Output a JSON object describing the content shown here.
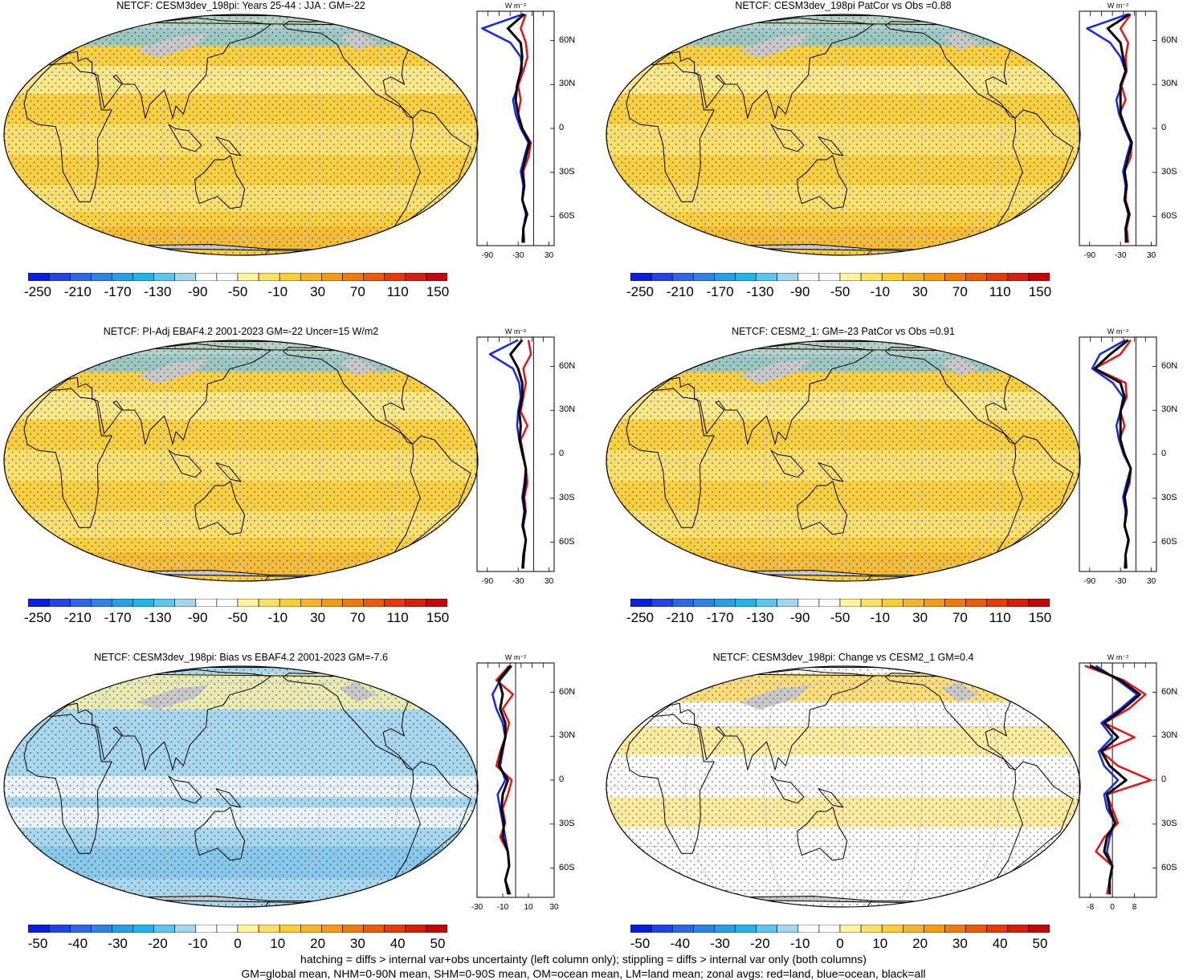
{
  "zonal_unit": "W m⁻²",
  "lat_labels": [
    "60N",
    "30N",
    "0",
    "30S",
    "60S"
  ],
  "palettes": {
    "main": [
      "#0a1ee0",
      "#2244e6",
      "#2e64e6",
      "#2f82e6",
      "#279fe6",
      "#20b4ea",
      "#5cc6ee",
      "#a4d8ee",
      "#ffffff",
      "#ffffff",
      "#fff2a0",
      "#ffe066",
      "#ffcc33",
      "#f7b32a",
      "#f59a14",
      "#f07a0c",
      "#ec5a0a",
      "#e63a0a",
      "#d81e0a",
      "#c4060a"
    ],
    "diff": [
      "#0a1ee0",
      "#2244e6",
      "#2e64e6",
      "#2f82e6",
      "#279fe6",
      "#20b4ea",
      "#5cc6ee",
      "#a4d8ee",
      "#ffffff",
      "#ffffff",
      "#fff2a0",
      "#ffe066",
      "#ffcc33",
      "#f7b32a",
      "#f59a14",
      "#f07a0c",
      "#ec5a0a",
      "#e63a0a",
      "#d81e0a",
      "#c4060a"
    ]
  },
  "panels": [
    {
      "title": "NETCF: CESM3dev_198pi: Years 25-44 : JJA : GM=-22",
      "palette": "main",
      "base": "#f9cf44",
      "colorbar_labels": [
        "-250",
        "-210",
        "-170",
        "-130",
        "-90",
        "-50",
        "-10",
        "30",
        "70",
        "110",
        "150"
      ],
      "zonal_xticks": [
        "-90",
        "-30",
        "30"
      ],
      "zonal_range": [
        -110,
        40
      ],
      "zonal_series": {
        "land": [
          -15,
          -25,
          -15,
          -12,
          -20,
          -30,
          -25,
          -30,
          -22,
          -5,
          -10,
          -20,
          -18,
          -22,
          -12,
          -20,
          -18
        ],
        "ocean": [
          -20,
          -100,
          -45,
          -25,
          -22,
          -30,
          -40,
          -35,
          -25,
          -10,
          -18,
          -25,
          -20,
          -22,
          -15,
          -20,
          -22
        ],
        "all": [
          -18,
          -50,
          -25,
          -22,
          -25,
          -32,
          -35,
          -30,
          -22,
          -8,
          -15,
          -22,
          -18,
          -22,
          -13,
          -20,
          -20
        ]
      }
    },
    {
      "title": "NETCF: CESM3dev_198pi PatCor vs Obs =0.88",
      "palette": "main",
      "base": "#f9cf44",
      "colorbar_labels": [
        "-250",
        "-210",
        "-170",
        "-130",
        "-90",
        "-50",
        "-10",
        "30",
        "70",
        "110",
        "150"
      ],
      "zonal_xticks": [
        "-90",
        "-30",
        "30"
      ],
      "zonal_range": [
        -110,
        40
      ],
      "zonal_series": {
        "land": [
          -10,
          -30,
          -15,
          -20,
          -18,
          -28,
          -20,
          -32,
          -20,
          -8,
          -10,
          -22,
          -18,
          -20,
          -12,
          -18,
          -15
        ],
        "ocean": [
          -15,
          -95,
          -50,
          -30,
          -20,
          -28,
          -38,
          -33,
          -22,
          -10,
          -18,
          -25,
          -20,
          -22,
          -15,
          -20,
          -20
        ],
        "all": [
          -12,
          -55,
          -30,
          -25,
          -20,
          -30,
          -30,
          -30,
          -20,
          -8,
          -15,
          -22,
          -18,
          -22,
          -13,
          -20,
          -18
        ]
      }
    },
    {
      "title": "NETCF: PI-Adj EBAF4.2 2001-2023 GM=-22 Uncer=15 W/m2",
      "palette": "main",
      "base": "#f9cf44",
      "colorbar_labels": [
        "-250",
        "-210",
        "-170",
        "-130",
        "-90",
        "-50",
        "-10",
        "30",
        "70",
        "110",
        "150"
      ],
      "zonal_xticks": [
        "-90",
        "-30",
        "30"
      ],
      "zonal_range": [
        -110,
        40
      ],
      "zonal_series": {
        "land": [
          -10,
          -5,
          -20,
          -15,
          -20,
          -25,
          -12,
          -25,
          -20,
          -15,
          -12,
          -18,
          -15,
          -20,
          -15,
          -18,
          -20
        ],
        "ocean": [
          -30,
          -85,
          -40,
          -28,
          -25,
          -30,
          -32,
          -28,
          -22,
          -15,
          -18,
          -22,
          -18,
          -22,
          -15,
          -20,
          -22
        ],
        "all": [
          -22,
          -45,
          -30,
          -22,
          -22,
          -28,
          -25,
          -27,
          -21,
          -15,
          -16,
          -20,
          -17,
          -21,
          -15,
          -19,
          -21
        ]
      }
    },
    {
      "title": "NETCF: CESM2_1: GM=-23 PatCor vs Obs =0.91",
      "palette": "main",
      "base": "#f9cf44",
      "colorbar_labels": [
        "-250",
        "-210",
        "-170",
        "-130",
        "-90",
        "-50",
        "-10",
        "30",
        "70",
        "110",
        "150"
      ],
      "zonal_xticks": [
        "-90",
        "-30",
        "30"
      ],
      "zonal_range": [
        -110,
        40
      ],
      "zonal_series": {
        "land": [
          -10,
          -30,
          -80,
          -20,
          -18,
          -30,
          -22,
          -32,
          -22,
          -10,
          -12,
          -22,
          -18,
          -22,
          -14,
          -20,
          -18
        ],
        "ocean": [
          -20,
          -70,
          -85,
          -45,
          -25,
          -30,
          -38,
          -33,
          -24,
          -10,
          -18,
          -25,
          -20,
          -22,
          -15,
          -20,
          -22
        ],
        "all": [
          -15,
          -50,
          -80,
          -30,
          -22,
          -30,
          -30,
          -30,
          -22,
          -10,
          -15,
          -22,
          -18,
          -22,
          -14,
          -20,
          -20
        ]
      }
    },
    {
      "title": "NETCF: CESM3dev_198pi: Bias vs EBAF4.2 2001-2023 GM=-7.6",
      "palette": "diff",
      "base": "#a8d8f0",
      "colorbar_labels": [
        "-50",
        "-40",
        "-30",
        "-20",
        "-10",
        "0",
        "10",
        "20",
        "30",
        "40",
        "50"
      ],
      "zonal_xticks": [
        "-30",
        "-10",
        "10",
        "30"
      ],
      "zonal_range": [
        -30,
        30
      ],
      "zonal_series": {
        "land": [
          -5,
          -15,
          -2,
          -10,
          -5,
          -8,
          -12,
          -15,
          -3,
          -6,
          -10,
          -8,
          -12,
          -6,
          -5,
          -8,
          -4
        ],
        "ocean": [
          -3,
          -12,
          -18,
          -15,
          -10,
          -8,
          -10,
          -12,
          -8,
          -14,
          -12,
          -10,
          -8,
          -6,
          -5,
          -8,
          -6
        ],
        "all": [
          -4,
          -13,
          -10,
          -12,
          -8,
          -8,
          -11,
          -13,
          -6,
          -10,
          -11,
          -9,
          -10,
          -6,
          -5,
          -8,
          -5
        ]
      }
    },
    {
      "title": "NETCF: CESM3dev_198pi: Change vs CESM2_1 GM=0.4",
      "palette": "diff",
      "base": "#ffffff",
      "colorbar_labels": [
        "-50",
        "-40",
        "-30",
        "-20",
        "-10",
        "0",
        "10",
        "20",
        "30",
        "40",
        "50"
      ],
      "zonal_xticks": [
        "-8",
        "0",
        "8"
      ],
      "zonal_range": [
        -12,
        16
      ],
      "zonal_series": {
        "land": [
          -10,
          4,
          12,
          6,
          -3,
          8,
          -4,
          2,
          14,
          -2,
          0,
          2,
          -3,
          -6,
          0,
          -1,
          -2
        ],
        "ocean": [
          -6,
          2,
          9,
          3,
          -4,
          0,
          -5,
          -3,
          2,
          -3,
          -2,
          1,
          -1,
          -2,
          0,
          -1,
          -1
        ],
        "all": [
          -8,
          3,
          10,
          4,
          -3,
          2,
          -4,
          -1,
          5,
          -2,
          -1,
          1,
          -2,
          -3,
          0,
          -1,
          -1
        ]
      }
    }
  ],
  "footer": {
    "line1": "hatching = diffs > internal var+obs uncertainty (left column only); stippling = diffs > internal var only (both columns)",
    "line2": "GM=global mean, NHM=0-90N mean, SHM=0-90S mean, OM=ocean mean, LM=land mean; zonal avgs: red=land, blue=ocean, black=all"
  }
}
